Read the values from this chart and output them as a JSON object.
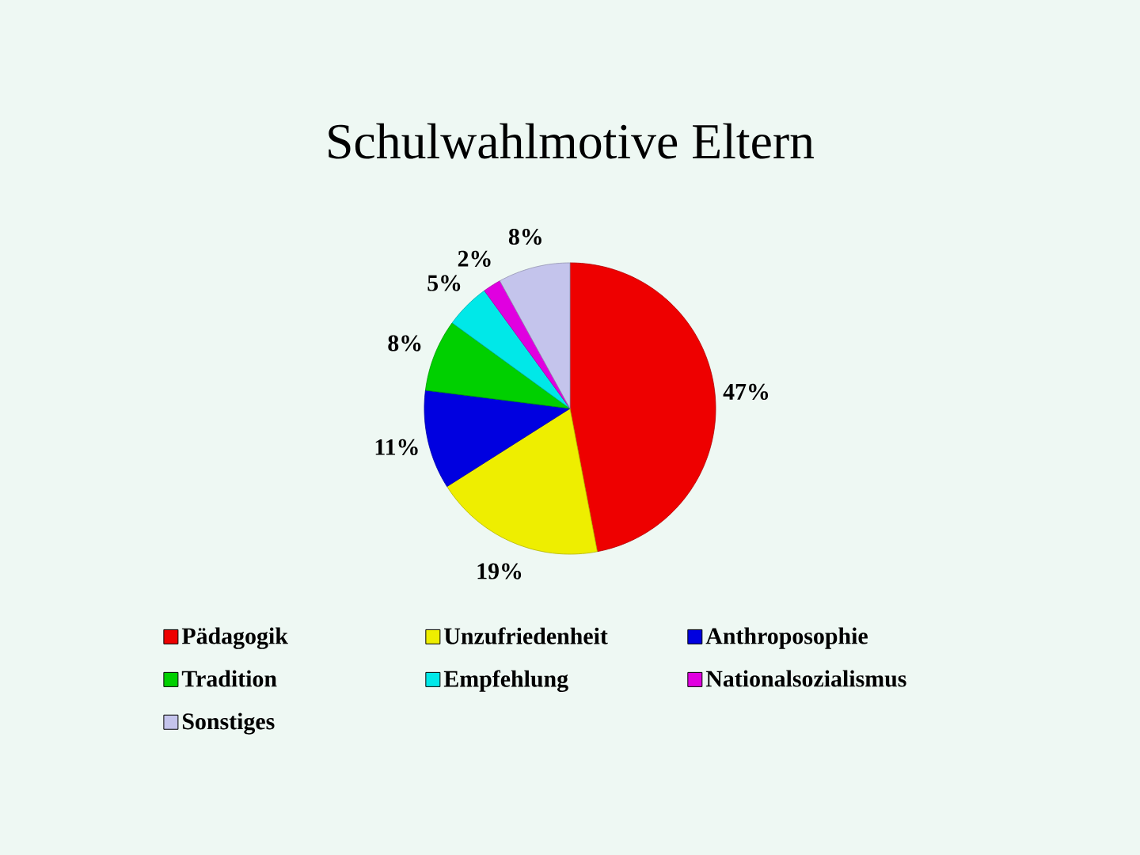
{
  "chart_data": {
    "type": "pie",
    "title": "Schulwahlmotive Eltern",
    "categories": [
      "Pädagogik",
      "Unzufriedenheit",
      "Anthroposophie",
      "Tradition",
      "Empfehlung",
      "Nationalsozialismus",
      "Sonstiges"
    ],
    "values": [
      47,
      19,
      11,
      8,
      5,
      2,
      8
    ],
    "value_labels": [
      "47%",
      "19%",
      "11%",
      "8%",
      "5%",
      "2%",
      "8%"
    ],
    "colors": [
      "#ee0000",
      "#eeee00",
      "#0000e0",
      "#00d000",
      "#00e8e8",
      "#e000e0",
      "#c4c4ec"
    ],
    "legend": "bottom"
  }
}
